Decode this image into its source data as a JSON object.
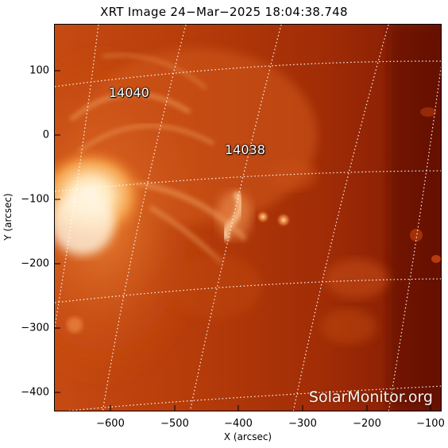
{
  "title": "XRT Image 24−Mar−2025 18:04:38.748",
  "watermark": "SolarMonitor.org",
  "axes": {
    "xlabel": "X (arcsec)",
    "ylabel": "Y (arcsec)",
    "xticks": [
      "−600",
      "−500",
      "−400",
      "−300",
      "−200",
      "−100"
    ],
    "yticks": [
      "100",
      "0",
      "−100",
      "−200",
      "−300",
      "−400"
    ]
  },
  "regions": [
    {
      "number": "14040"
    },
    {
      "number": "14038"
    }
  ],
  "colors": {
    "deep": "#7a1500",
    "mid": "#b83a08",
    "bright": "#ffe2b0",
    "grid": "#ffffff"
  }
}
